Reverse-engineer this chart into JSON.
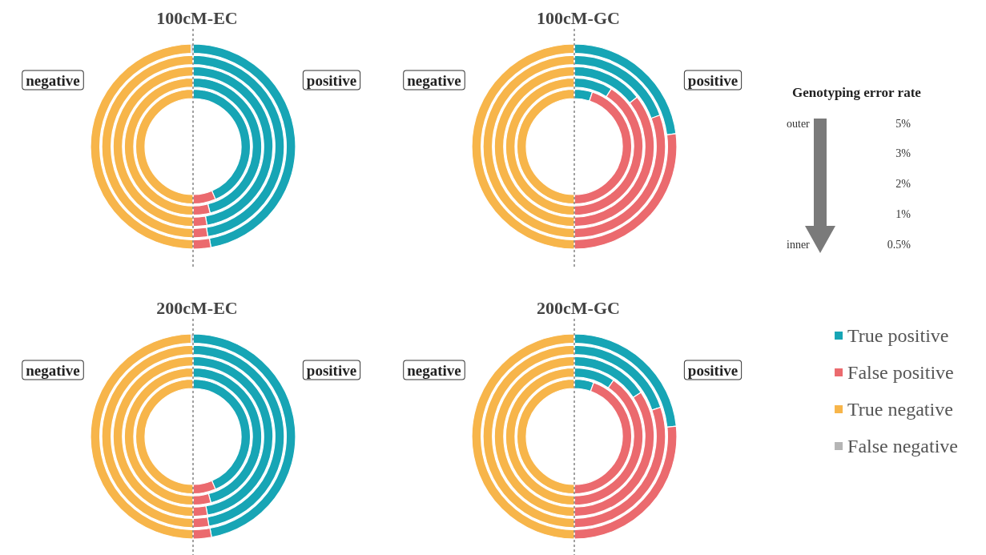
{
  "chart_data": [
    {
      "type": "donut",
      "title": "100cM-EC",
      "categories": [
        null,
        null,
        null,
        null
      ],
      "colors": [
        "#17a5b5",
        "#eb6a6e",
        "#f7b54a",
        "#b5b5b5"
      ],
      "annotations": [
        "negative",
        "positive"
      ],
      "series": [
        {
          "values": [
            47.2,
            2.8,
            49.7,
            0.3
          ]
        },
        {
          "values": [
            47.4,
            2.6,
            50,
            0
          ]
        },
        {
          "values": [
            47.2,
            2.8,
            50,
            0
          ]
        },
        {
          "values": [
            46,
            4,
            50,
            0
          ]
        },
        {
          "values": [
            43.6,
            6.4,
            50,
            0
          ]
        }
      ]
    },
    {
      "type": "donut",
      "title": "100cM-GC",
      "categories": [
        null,
        null,
        null,
        null
      ],
      "colors": [
        "#17a5b5",
        "#eb6a6e",
        "#f7b54a",
        "#b5b5b5"
      ],
      "annotations": [
        "negative",
        "positive"
      ],
      "series": [
        {
          "values": [
            23,
            27,
            50,
            0
          ]
        },
        {
          "values": [
            19.4,
            30.6,
            50,
            0
          ]
        },
        {
          "values": [
            14.4,
            35.6,
            50,
            0
          ]
        },
        {
          "values": [
            9.1,
            40.9,
            50,
            0
          ]
        },
        {
          "values": [
            5.1,
            44.9,
            50,
            0
          ]
        }
      ]
    },
    {
      "type": "donut",
      "title": "200cM-EC",
      "categories": [
        null,
        null,
        null,
        null
      ],
      "colors": [
        "#17a5b5",
        "#eb6a6e",
        "#f7b54a",
        "#b5b5b5"
      ],
      "annotations": [
        "negative",
        "positive"
      ],
      "series": [
        {
          "values": [
            47.1,
            2.9,
            49.7,
            0.3
          ]
        },
        {
          "values": [
            47.2,
            2.8,
            50,
            0
          ]
        },
        {
          "values": [
            47.1,
            2.9,
            50,
            0
          ]
        },
        {
          "values": [
            45.8,
            4.2,
            50,
            0
          ]
        },
        {
          "values": [
            43.6,
            6.4,
            50,
            0
          ]
        }
      ]
    },
    {
      "type": "donut",
      "title": "200cM-GC",
      "categories": [
        "True positive",
        "False positive",
        "True negative",
        "False negative"
      ],
      "colors": [
        "#17a5b5",
        "#eb6a6e",
        "#f7b54a",
        "#b5b5b5"
      ],
      "annotations": [
        "negative",
        "positive"
      ],
      "legend": "right",
      "series": [
        {
          "values": [
            23.4,
            26.6,
            50,
            0
          ]
        },
        {
          "values": [
            19.8,
            30.2,
            50,
            0
          ]
        },
        {
          "values": [
            15.7,
            34.3,
            50,
            0
          ]
        },
        {
          "values": [
            9.7,
            40.3,
            50,
            0
          ]
        },
        {
          "values": [
            5.5,
            44.5,
            50,
            0
          ]
        }
      ]
    },
    {
      "type": "other",
      "title": "Genotyping error rate",
      "annotations": [
        "outer",
        "inner",
        "5%",
        "3%",
        "2%",
        "1%",
        "0.5%"
      ]
    }
  ]
}
